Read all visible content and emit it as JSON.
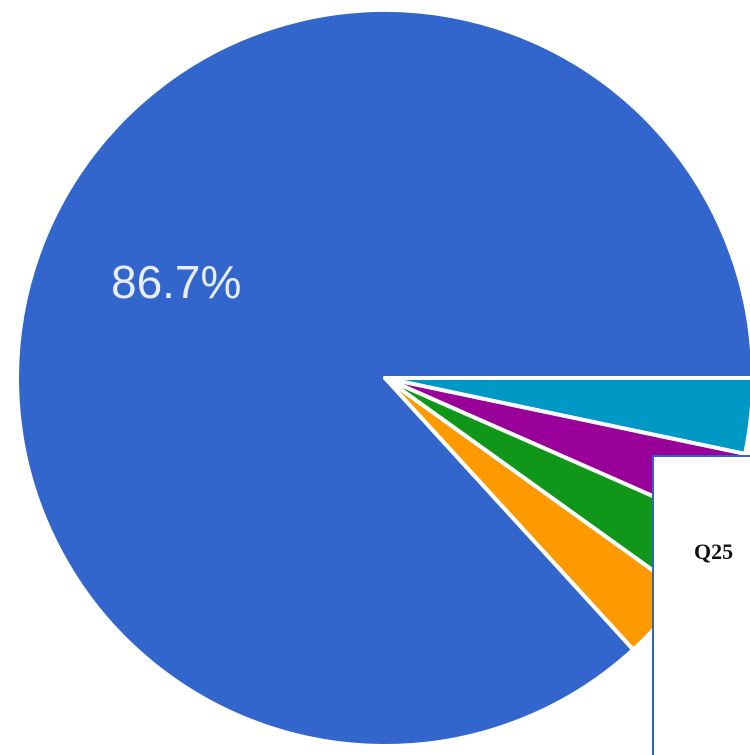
{
  "chart_data": {
    "type": "pie",
    "slices": [
      {
        "value": 86.7,
        "color": "#3366cc",
        "label": "86.7%"
      },
      {
        "value": 3.3,
        "color": "#ff9900",
        "label": ""
      },
      {
        "value": 3.3,
        "color": "#109618",
        "label": ""
      },
      {
        "value": 3.3,
        "color": "#990099",
        "label": ""
      },
      {
        "value": 3.3,
        "color": "#0099c6",
        "label": ""
      }
    ],
    "legend": "none"
  },
  "overlay": {
    "text": "Q25"
  }
}
